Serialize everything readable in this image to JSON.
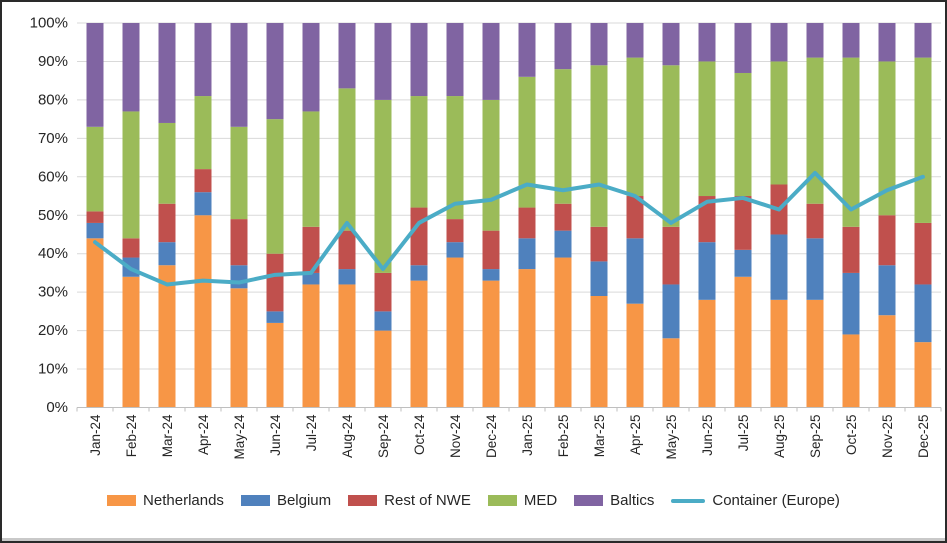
{
  "chart_data": {
    "type": "bar",
    "subtype": "stacked-percent-bars-with-line-overlay",
    "title": "",
    "categories": [
      "Jan-24",
      "Feb-24",
      "Mar-24",
      "Apr-24",
      "May-24",
      "Jun-24",
      "Jul-24",
      "Aug-24",
      "Sep-24",
      "Oct-24",
      "Nov-24",
      "Dec-24",
      "Jan-25",
      "Feb-25",
      "Mar-25",
      "Apr-25",
      "May-25",
      "Jun-25",
      "Jul-25",
      "Aug-25",
      "Sep-25",
      "Oct-25",
      "Nov-25",
      "Dec-25"
    ],
    "series": [
      {
        "name": "Netherlands",
        "type": "bar",
        "color": "#F79646",
        "values": [
          44,
          34,
          37,
          50,
          31,
          22,
          32,
          32,
          20,
          33,
          39,
          33,
          36,
          39,
          29,
          27,
          18,
          28,
          34,
          28,
          28,
          19,
          24,
          17
        ]
      },
      {
        "name": "Belgium",
        "type": "bar",
        "color": "#4F81BD",
        "values": [
          4,
          5,
          6,
          6,
          6,
          3,
          3,
          4,
          5,
          4,
          4,
          3,
          8,
          7,
          9,
          17,
          14,
          15,
          7,
          17,
          16,
          16,
          13,
          15
        ]
      },
      {
        "name": "Rest of NWE",
        "type": "bar",
        "color": "#C0504D",
        "values": [
          3,
          5,
          10,
          6,
          12,
          15,
          12,
          10,
          10,
          15,
          6,
          10,
          8,
          7,
          9,
          11,
          15,
          12,
          14,
          13,
          9,
          12,
          13,
          16
        ]
      },
      {
        "name": "MED",
        "type": "bar",
        "color": "#9BBB59",
        "values": [
          22,
          33,
          21,
          19,
          24,
          35,
          30,
          37,
          45,
          29,
          32,
          34,
          34,
          35,
          42,
          36,
          42,
          35,
          32,
          32,
          38,
          44,
          40,
          43
        ]
      },
      {
        "name": "Baltics",
        "type": "bar",
        "color": "#8064A2",
        "values": [
          27,
          23,
          26,
          19,
          27,
          25,
          23,
          17,
          20,
          19,
          19,
          20,
          14,
          12,
          11,
          9,
          11,
          10,
          13,
          10,
          9,
          9,
          10,
          9
        ]
      },
      {
        "name": "Container (Europe)",
        "type": "line",
        "color": "#4BACC6",
        "values": [
          43,
          36,
          32,
          33,
          32.5,
          34.5,
          35,
          48,
          36,
          48,
          53,
          54,
          58,
          56.5,
          58,
          55,
          48,
          53.5,
          54.5,
          51.5,
          61,
          51.5,
          56.5,
          60
        ]
      }
    ],
    "y_axis": {
      "min": 0,
      "max": 100,
      "step": 10,
      "format": "percent",
      "labels": [
        "0%",
        "10%",
        "20%",
        "30%",
        "40%",
        "50%",
        "60%",
        "70%",
        "80%",
        "90%",
        "100%"
      ]
    },
    "x_axis": {
      "label_rotation_deg": 90
    },
    "legend_position": "bottom",
    "grid": "horizontal",
    "grid_color": "#D9D9D9",
    "axis_line_color": "#BFBFBF",
    "text_color": "#262626",
    "background_color": "#FFFFFF"
  }
}
